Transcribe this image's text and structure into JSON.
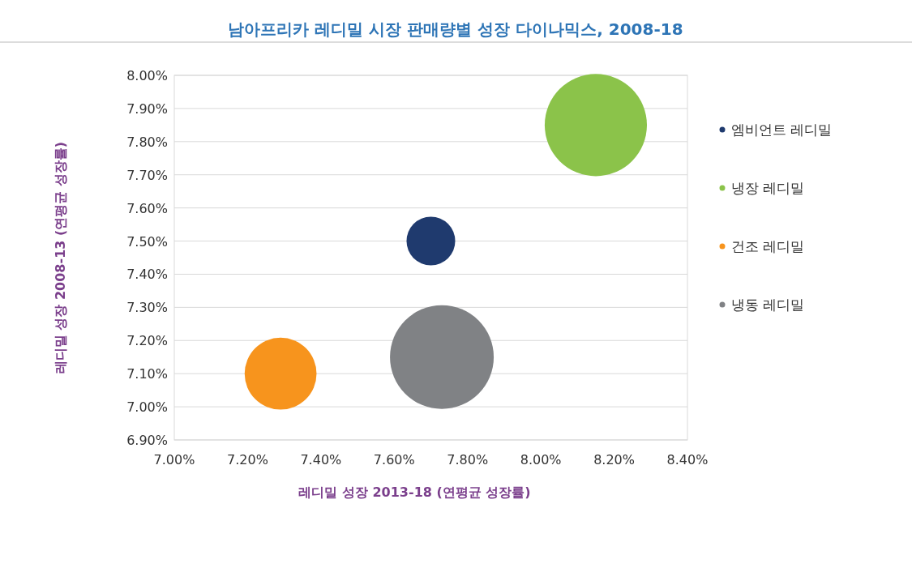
{
  "chart_data": {
    "type": "bubble",
    "title": "남아프리카 레디밀 시장 판매량별 성장 다이나믹스, 2008-18",
    "xlabel": "레디밀 성장 2013-18 (연평균 성장률)",
    "ylabel": "레디밀 성장 2008-13 (연평균 성장률)",
    "series": [
      {
        "name": "엠비언트 레디밀",
        "color": "#1f3a6e",
        "x": [
          7.7
        ],
        "values": [
          7.5
        ],
        "sizes": [
          0.22
        ]
      },
      {
        "name": "냉장 레디밀",
        "color": "#8bc34a",
        "x": [
          8.15
        ],
        "values": [
          7.85
        ],
        "sizes": [
          0.97
        ]
      },
      {
        "name": "건조 레디밀",
        "color": "#f7941d",
        "x": [
          7.29
        ],
        "values": [
          7.1
        ],
        "sizes": [
          0.48
        ]
      },
      {
        "name": "냉동 레디밀",
        "color": "#808285",
        "x": [
          7.73
        ],
        "values": [
          7.15
        ],
        "sizes": [
          1
        ]
      }
    ],
    "xlim": [
      7.0,
      8.4
    ],
    "xticks": [
      {
        "value": 7.0,
        "label": "7.00%"
      },
      {
        "value": 7.2,
        "label": "7.20%"
      },
      {
        "value": 7.4,
        "label": "7.40%"
      },
      {
        "value": 7.6,
        "label": "7.60%"
      },
      {
        "value": 7.8,
        "label": "7.80%"
      },
      {
        "value": 8.0,
        "label": "8.00%"
      },
      {
        "value": 8.2,
        "label": "8.20%"
      },
      {
        "value": 8.4,
        "label": "8.40%"
      }
    ],
    "ylim": [
      6.9,
      8.0
    ],
    "yticks": [
      {
        "value": 6.9,
        "label": "6.90%"
      },
      {
        "value": 7.0,
        "label": "7.00%"
      },
      {
        "value": 7.1,
        "label": "7.10%"
      },
      {
        "value": 7.2,
        "label": "7.20%"
      },
      {
        "value": 7.3,
        "label": "7.30%"
      },
      {
        "value": 7.4,
        "label": "7.40%"
      },
      {
        "value": 7.5,
        "label": "7.50%"
      },
      {
        "value": 7.6,
        "label": "7.60%"
      },
      {
        "value": 7.7,
        "label": "7.70%"
      },
      {
        "value": 7.8,
        "label": "7.80%"
      },
      {
        "value": 7.9,
        "label": "7.90%"
      },
      {
        "value": 8.0,
        "label": "8.00%"
      }
    ],
    "grid": "y",
    "legend": "right"
  }
}
